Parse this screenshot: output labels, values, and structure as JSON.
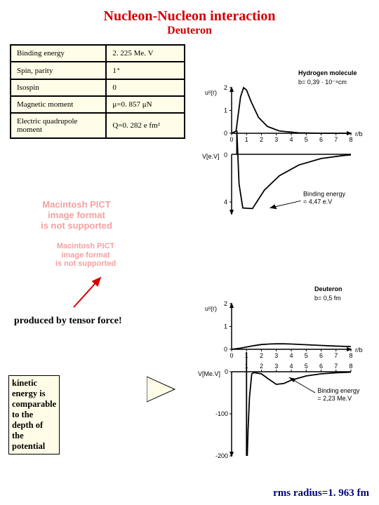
{
  "title": "Nucleon-Nucleon interaction",
  "subtitle": "Deuteron",
  "table": {
    "bg": "#fffde7",
    "rows": [
      {
        "label": "Binding energy",
        "value": "2. 225 Me. V"
      },
      {
        "label": "Spin, parity",
        "value": "1⁺"
      },
      {
        "label": "Isospin",
        "value": "0"
      },
      {
        "label": "Magnetic moment",
        "value": "μ=0. 857 μN"
      },
      {
        "label": "Electric quadrupole moment",
        "value": "Q=0. 282 e fm²"
      }
    ]
  },
  "placeholders": {
    "p1": "Macintosh PICT\nimage format\nis not supported",
    "p2": "Macintosh PICT\nimage format\nis not supported"
  },
  "tensor_label": "produced by tensor force!",
  "kinetic_label": "kinetic energy is comparable\nto the depth of the potential",
  "rms_label": "rms radius=1. 963 fm",
  "hydrogen_chart": {
    "title1": "Hydrogen molecule",
    "title2": "b= 0,39 · 10⁻⁸cm",
    "u2_label": "u²(r)",
    "v_label": "V[e.V]",
    "x_label": "r/b",
    "binding": "Binding energy\n= 4,47 e.V",
    "xlim": [
      0,
      8
    ],
    "u2_ylim": [
      0,
      2
    ],
    "u2_yticks": [
      0,
      1,
      2
    ],
    "v_yticks": [
      0,
      4
    ],
    "u2_curve": [
      [
        0,
        0
      ],
      [
        0.3,
        0.1
      ],
      [
        0.6,
        1.6
      ],
      [
        0.8,
        2.0
      ],
      [
        1.0,
        1.9
      ],
      [
        1.3,
        1.4
      ],
      [
        1.8,
        0.7
      ],
      [
        2.4,
        0.3
      ],
      [
        3.2,
        0.1
      ],
      [
        4.5,
        0.02
      ],
      [
        6,
        0
      ],
      [
        8,
        0
      ]
    ],
    "v_top": [
      [
        0.3,
        0
      ],
      [
        0.4,
        0
      ],
      [
        8,
        0
      ]
    ],
    "v_curve": [
      [
        0.35,
        -2
      ],
      [
        0.5,
        2.5
      ],
      [
        0.75,
        4.5
      ],
      [
        1.4,
        4.55
      ],
      [
        2.2,
        3.0
      ],
      [
        3.2,
        1.8
      ],
      [
        4.5,
        0.9
      ],
      [
        6,
        0.35
      ],
      [
        7.5,
        0.1
      ],
      [
        8,
        0.05
      ]
    ],
    "colors": {
      "axis": "#000",
      "curve": "#000",
      "bg": "#fff"
    }
  },
  "deuteron_chart": {
    "title1": "Deuteron",
    "title2": "b= 0,5 fm",
    "u2_label": "u²(r)",
    "v_label": "V[Me.V]",
    "x_label": "r/b",
    "binding": "Binding energy\n= 2,23 Me.V",
    "xlim": [
      0,
      8
    ],
    "u2_ylim": [
      0,
      2
    ],
    "u2_yticks": [
      0,
      1,
      2
    ],
    "v_yticks": [
      0,
      -100,
      -200
    ],
    "u2_curve": [
      [
        0,
        0
      ],
      [
        0.5,
        0.04
      ],
      [
        1.0,
        0.1
      ],
      [
        1.5,
        0.16
      ],
      [
        2.0,
        0.21
      ],
      [
        2.5,
        0.23
      ],
      [
        3,
        0.24
      ],
      [
        3.5,
        0.24
      ],
      [
        4,
        0.23
      ],
      [
        5,
        0.2
      ],
      [
        6,
        0.17
      ],
      [
        7,
        0.14
      ],
      [
        8,
        0.12
      ]
    ],
    "v_curve": [
      [
        1.05,
        -200
      ],
      [
        1.1,
        -140
      ],
      [
        1.2,
        -60
      ],
      [
        1.35,
        -5
      ],
      [
        1.5,
        -2
      ],
      [
        2,
        -5
      ],
      [
        2.5,
        -18
      ],
      [
        3,
        -30
      ],
      [
        3.5,
        -28
      ],
      [
        4,
        -20
      ],
      [
        5,
        -10
      ],
      [
        6,
        -5
      ],
      [
        7,
        -2.5
      ],
      [
        8,
        -1
      ]
    ],
    "colors": {
      "axis": "#000",
      "curve": "#000",
      "bg": "#fff"
    }
  }
}
